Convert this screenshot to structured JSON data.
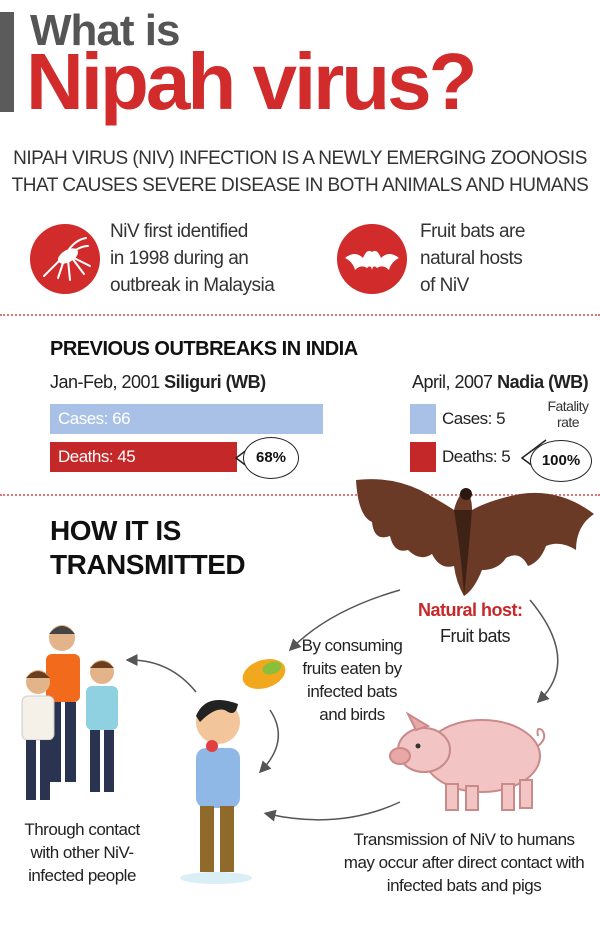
{
  "header": {
    "line1": "What is",
    "line2": "Nipah virus?"
  },
  "intro": {
    "line1": "NIPAH VIRUS (NIV) INFECTION IS A NEWLY EMERGING ZOONOSIS",
    "line2": "THAT CAUSES SEVERE DISEASE IN BOTH ANIMALS AND HUMANS"
  },
  "facts": [
    {
      "icon": "mosquito-icon",
      "lines": [
        "NiV first identified",
        "in 1998 during an",
        "outbreak in Malaysia"
      ]
    },
    {
      "icon": "bat-icon",
      "lines": [
        "Fruit bats are",
        "natural hosts",
        "of NiV"
      ]
    }
  ],
  "outbreaks": {
    "heading": "PREVIOUS OUTBREAKS IN INDIA",
    "siliguri": {
      "date": "Jan-Feb, 2001",
      "place": "Siliguri (WB)",
      "cases_label": "Cases: 66",
      "deaths_label": "Deaths: 45",
      "cases": 66,
      "deaths": 45,
      "fatality": "68%"
    },
    "nadia": {
      "date": "April, 2007",
      "place": "Nadia (WB)",
      "cases_label": "Cases: 5",
      "deaths_label": "Deaths: 5",
      "cases": 5,
      "deaths": 5,
      "fatality": "100%",
      "fatality_label_1": "Fatality",
      "fatality_label_2": "rate"
    }
  },
  "transmission": {
    "heading_1": "HOW IT IS",
    "heading_2": "TRANSMITTED",
    "natural_host": "Natural host:",
    "natural_host_sub": "Fruit bats",
    "fruits": [
      "By consuming",
      "fruits eaten by",
      "infected bats",
      "and birds"
    ],
    "contact": [
      "Through contact",
      "with other NiV-",
      "infected people"
    ],
    "humans": [
      "Transmission of NiV to humans",
      "may occur after direct contact with",
      "infected bats and pigs"
    ]
  },
  "colors": {
    "accent_red": "#d22b2b",
    "bar_blue": "#a9c1e6",
    "bar_red": "#c52828"
  }
}
